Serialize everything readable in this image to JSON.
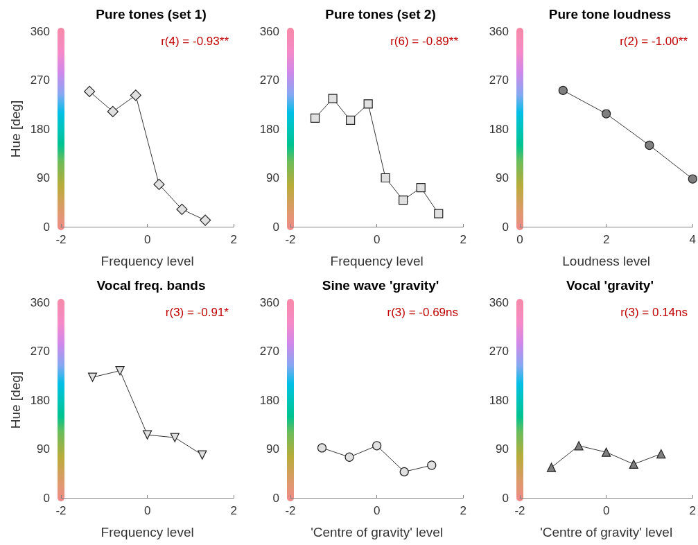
{
  "chart_data": [
    {
      "type": "line",
      "title": "Pure tones (set 1)",
      "xlabel": "Frequency level",
      "ylabel": "Hue [deg]",
      "annotations": [
        "r(4) = -0.93**"
      ],
      "marker": "diamond",
      "x": [
        -1.34,
        -0.8,
        -0.27,
        0.27,
        0.8,
        1.34
      ],
      "series": [
        {
          "color": "#e0e0e0",
          "values": [
            249,
            212,
            242,
            78,
            32,
            12
          ]
        }
      ],
      "xlim": [
        -2,
        2
      ],
      "xticks": [
        -2,
        0,
        2
      ],
      "ylim": [
        0,
        360
      ],
      "yticks": [
        0,
        90,
        180,
        270,
        360
      ]
    },
    {
      "type": "line",
      "title": "Pure tones (set 2)",
      "xlabel": "Frequency level",
      "annotations": [
        "r(6) = -0.89**"
      ],
      "marker": "square",
      "x": [
        -1.43,
        -1.02,
        -0.61,
        -0.2,
        0.2,
        0.61,
        1.02,
        1.43
      ],
      "series": [
        {
          "color": "#e0e0e0",
          "values": [
            200,
            236,
            196,
            226,
            90,
            49,
            72,
            24
          ]
        }
      ],
      "xlim": [
        -2,
        2
      ],
      "xticks": [
        -2,
        0,
        2
      ],
      "ylim": [
        0,
        360
      ],
      "yticks": [
        0,
        90,
        180,
        270,
        360
      ]
    },
    {
      "type": "line",
      "title": "Pure tone loudness",
      "xlabel": "Loudness level",
      "annotations": [
        "r(2) = -1.00**"
      ],
      "marker": "circle",
      "x": [
        1,
        2,
        3,
        4
      ],
      "series": [
        {
          "color": "#7f7f7f",
          "values": [
            251,
            208,
            150,
            88
          ]
        }
      ],
      "xlim": [
        0,
        4
      ],
      "xticks": [
        0,
        2,
        4
      ],
      "ylim": [
        0,
        360
      ],
      "yticks": [
        0,
        90,
        180,
        270,
        360
      ]
    },
    {
      "type": "line",
      "title": "Vocal freq. bands",
      "xlabel": "Frequency level",
      "ylabel": "Hue [deg]",
      "annotations": [
        "r(3) = -0.91*"
      ],
      "marker": "triangle-down",
      "x": [
        -1.27,
        -0.635,
        0,
        0.635,
        1.27
      ],
      "series": [
        {
          "color": "#e0e0e0",
          "values": [
            222,
            234,
            116,
            111,
            79
          ]
        }
      ],
      "xlim": [
        -2,
        2
      ],
      "xticks": [
        -2,
        0,
        2
      ],
      "ylim": [
        0,
        360
      ],
      "yticks": [
        0,
        90,
        180,
        270,
        360
      ]
    },
    {
      "type": "line",
      "title": "Sine wave 'gravity'",
      "xlabel": "'Centre of gravity' level",
      "annotations": [
        "r(3) = -0.69ns"
      ],
      "marker": "circle",
      "x": [
        -1.27,
        -0.635,
        0,
        0.635,
        1.27
      ],
      "series": [
        {
          "color": "#e0e0e0",
          "values": [
            92,
            75,
            96,
            48,
            60
          ]
        }
      ],
      "xlim": [
        -2,
        2
      ],
      "xticks": [
        -2,
        0,
        2
      ],
      "ylim": [
        0,
        360
      ],
      "yticks": [
        0,
        90,
        180,
        270,
        360
      ]
    },
    {
      "type": "line",
      "title": "Vocal 'gravity'",
      "xlabel": "'Centre of gravity' level",
      "annotations": [
        "r(3) = 0.14ns"
      ],
      "marker": "triangle",
      "x": [
        -1.27,
        -0.635,
        0,
        0.635,
        1.27
      ],
      "series": [
        {
          "color": "#7f7f7f",
          "values": [
            56,
            96,
            84,
            62,
            81
          ]
        }
      ],
      "xlim": [
        -2,
        2
      ],
      "xticks": [
        -2,
        0,
        2
      ],
      "ylim": [
        0,
        360
      ],
      "yticks": [
        0,
        90,
        180,
        270,
        360
      ]
    }
  ]
}
